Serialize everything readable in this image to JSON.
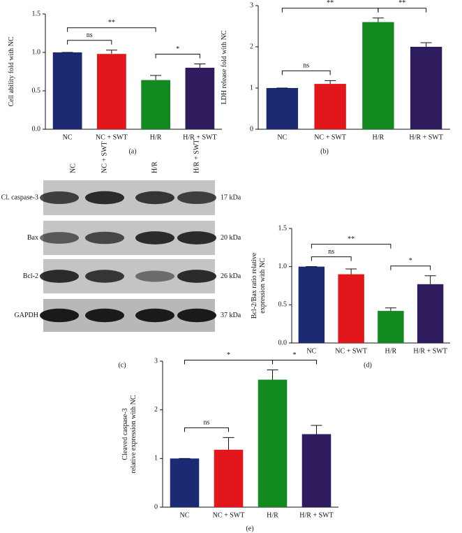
{
  "chart_data": [
    {
      "type": "bar",
      "panel_label": "(a)",
      "ylabel": [
        "Cell ability fold with NC"
      ],
      "categories": [
        "NC",
        "NC + SWT",
        "H/R",
        "H/R + SWT"
      ],
      "values": [
        1.0,
        0.98,
        0.64,
        0.8
      ],
      "errors": [
        0,
        0.05,
        0.06,
        0.05
      ],
      "colors": [
        "#1b2a72",
        "#e3161b",
        "#128a1f",
        "#2f1c5f"
      ],
      "ylim": [
        0,
        1.5
      ],
      "yticks": [
        {
          "value": 0,
          "label": "0.0"
        },
        {
          "value": 0.5,
          "label": "0.5"
        },
        {
          "value": 1,
          "label": "1.0"
        },
        {
          "value": 1.5,
          "label": "1.5"
        }
      ],
      "brackets": [
        {
          "from": "NC",
          "to": "NC + SWT",
          "label": "ns"
        },
        {
          "from": "H/R",
          "to": "H/R + SWT",
          "label": "*"
        },
        {
          "from": "NC",
          "to": "H/R",
          "label": "**"
        }
      ]
    },
    {
      "type": "bar",
      "panel_label": "(b)",
      "ylabel": [
        "LDH release fold with NC"
      ],
      "categories": [
        "NC",
        "NC + SWT",
        "H/R",
        "H/R + SWT"
      ],
      "values": [
        1.0,
        1.1,
        2.6,
        2.0
      ],
      "errors": [
        0,
        0.08,
        0.1,
        0.1
      ],
      "colors": [
        "#1b2a72",
        "#e3161b",
        "#128a1f",
        "#2f1c5f"
      ],
      "ylim": [
        0,
        3
      ],
      "yticks": [
        0,
        1,
        2,
        3
      ],
      "brackets": [
        {
          "from": "NC",
          "to": "NC + SWT",
          "label": "ns"
        },
        {
          "from": "H/R",
          "to": "H/R + SWT",
          "label": "**"
        },
        {
          "from": "NC",
          "to": "H/R",
          "label": "**"
        }
      ]
    },
    {
      "type": "bar",
      "panel_label": "(d)",
      "ylabel": [
        "Bcl-2/Bax ratio relative",
        "expression with NC"
      ],
      "categories": [
        "NC",
        "NC + SWT",
        "H/R",
        "H/R + SWT"
      ],
      "values": [
        1.0,
        0.9,
        0.42,
        0.77
      ],
      "errors": [
        0,
        0.07,
        0.04,
        0.11
      ],
      "colors": [
        "#1b2a72",
        "#e3161b",
        "#128a1f",
        "#2f1c5f"
      ],
      "ylim": [
        0,
        1.5
      ],
      "yticks": [
        {
          "value": 0,
          "label": "0.0"
        },
        {
          "value": 0.5,
          "label": "0.5"
        },
        {
          "value": 1,
          "label": "1.0"
        },
        {
          "value": 1.5,
          "label": "1.5"
        }
      ],
      "brackets": [
        {
          "from": "NC",
          "to": "NC + SWT",
          "label": "ns"
        },
        {
          "from": "H/R",
          "to": "H/R + SWT",
          "label": "*"
        },
        {
          "from": "NC",
          "to": "H/R",
          "label": "**"
        }
      ]
    },
    {
      "type": "bar",
      "panel_label": "(e)",
      "ylabel": [
        "Cleaved caspase-3",
        "relative expression with NC"
      ],
      "categories": [
        "NC",
        "NC + SWT",
        "H/R",
        "H/R + SWT"
      ],
      "values": [
        1.0,
        1.18,
        2.62,
        1.5
      ],
      "errors": [
        0,
        0.25,
        0.2,
        0.18
      ],
      "colors": [
        "#1b2a72",
        "#e3161b",
        "#128a1f",
        "#2f1c5f"
      ],
      "ylim": [
        0,
        3
      ],
      "yticks": [
        0,
        1,
        2,
        3
      ],
      "brackets": [
        {
          "from": "NC",
          "to": "NC + SWT",
          "label": "ns"
        },
        {
          "from": "H/R",
          "to": "H/R + SWT",
          "label": "*"
        },
        {
          "from": "NC",
          "to": "H/R",
          "label": "*"
        }
      ]
    }
  ],
  "blot": {
    "panel_label": "(c)",
    "lanes": [
      "NC",
      "NC + SWT",
      "H/R",
      "H/R + SWT"
    ],
    "rows": [
      {
        "protein": "Cl. caspase-3",
        "size": "17 kDa"
      },
      {
        "protein": "Bax",
        "size": "20 kDa"
      },
      {
        "protein": "Bcl-2",
        "size": "26 kDa"
      },
      {
        "protein": "GAPDH",
        "size": "37 kDa"
      }
    ]
  }
}
